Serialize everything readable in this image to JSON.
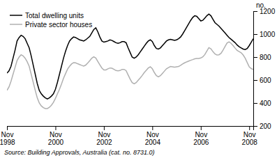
{
  "chart_data": {
    "type": "line",
    "ylabel": "no.",
    "annotations": [
      "Source: Building Approvals, Australia (cat. no. 8731.0)"
    ],
    "categories": [
      "Nov\n1998",
      null,
      null,
      null,
      null,
      null,
      null,
      null,
      null,
      null,
      null,
      null,
      null,
      null,
      null,
      null,
      null,
      null,
      null,
      null,
      null,
      null,
      null,
      null,
      "Nov\n2000",
      null,
      null,
      null,
      null,
      null,
      null,
      null,
      null,
      null,
      null,
      null,
      null,
      null,
      null,
      null,
      null,
      null,
      null,
      null,
      null,
      null,
      null,
      null,
      "Nov\n2002",
      null,
      null,
      null,
      null,
      null,
      null,
      null,
      null,
      null,
      null,
      null,
      null,
      null,
      null,
      null,
      null,
      null,
      null,
      null,
      null,
      null,
      null,
      null,
      "Nov\n2004",
      null,
      null,
      null,
      null,
      null,
      null,
      null,
      null,
      null,
      null,
      null,
      null,
      null,
      null,
      null,
      null,
      null,
      null,
      null,
      null,
      null,
      null,
      null,
      "Nov\n2006",
      null,
      null,
      null,
      null,
      null,
      null,
      null,
      null,
      null,
      null,
      null,
      null,
      null,
      null,
      null,
      null,
      null,
      null,
      null,
      null,
      null,
      null,
      null,
      "Nov\n2008",
      null,
      null
    ],
    "series": [
      {
        "name": "Total dwelling units",
        "color": "#000000",
        "values": [
          660,
          680,
          720,
          790,
          860,
          940,
          970,
          990,
          980,
          960,
          920,
          880,
          810,
          730,
          650,
          570,
          510,
          480,
          460,
          445,
          435,
          445,
          460,
          480,
          520,
          580,
          650,
          720,
          790,
          850,
          900,
          940,
          960,
          975,
          970,
          960,
          950,
          945,
          940,
          950,
          965,
          980,
          1010,
          1040,
          1055,
          1020,
          975,
          940,
          930,
          935,
          940,
          950,
          945,
          935,
          925,
          920,
          925,
          935,
          935,
          925,
          880,
          840,
          800,
          790,
          800,
          820,
          845,
          870,
          895,
          920,
          940,
          950,
          935,
          900,
          875,
          870,
          880,
          900,
          920,
          940,
          950,
          955,
          950,
          945,
          950,
          960,
          975,
          1000,
          1030,
          1060,
          1090,
          1120,
          1145,
          1160,
          1155,
          1135,
          1115,
          1120,
          1140,
          1160,
          1175,
          1160,
          1130,
          1100,
          1085,
          1070,
          1050,
          1030,
          1010,
          990,
          970,
          955,
          940,
          925,
          905,
          890,
          880,
          870,
          865,
          875,
          900,
          930,
          960
        ]
      },
      {
        "name": "Private sector houses",
        "color": "#b0b0b0",
        "values": [
          510,
          540,
          590,
          650,
          710,
          770,
          800,
          820,
          810,
          790,
          760,
          720,
          650,
          580,
          510,
          445,
          400,
          375,
          360,
          352,
          352,
          362,
          380,
          405,
          440,
          480,
          520,
          565,
          615,
          655,
          695,
          720,
          740,
          752,
          750,
          742,
          735,
          728,
          722,
          730,
          748,
          768,
          790,
          802,
          792,
          762,
          732,
          705,
          688,
          688,
          698,
          705,
          703,
          693,
          683,
          680,
          683,
          693,
          693,
          682,
          645,
          608,
          578,
          568,
          578,
          598,
          618,
          640,
          665,
          685,
          705,
          715,
          698,
          665,
          638,
          628,
          638,
          658,
          678,
          698,
          708,
          718,
          715,
          712,
          715,
          718,
          728,
          740,
          750,
          758,
          765,
          772,
          778,
          785,
          788,
          788,
          792,
          802,
          822,
          852,
          882,
          872,
          848,
          828,
          818,
          820,
          832,
          860,
          892,
          922,
          932,
          920,
          900,
          878,
          858,
          848,
          838,
          818,
          790,
          752,
          715,
          700,
          692
        ]
      }
    ],
    "ylim": [
      200,
      1200
    ],
    "yticks": [
      200,
      400,
      600,
      800,
      1000,
      1200
    ],
    "grid": false,
    "legend": "upper left"
  }
}
